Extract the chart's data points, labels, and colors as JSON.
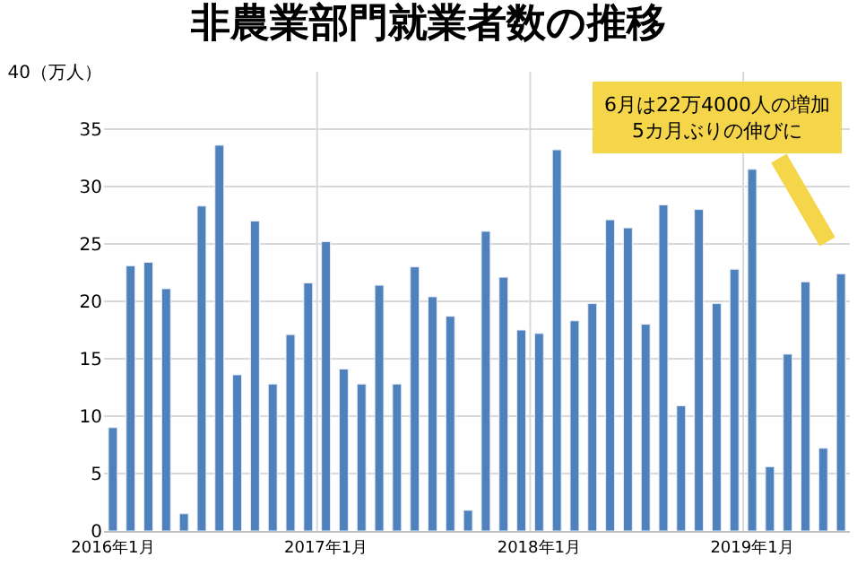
{
  "chart_data": {
    "type": "bar",
    "title": "非農業部門就業者数の推移",
    "categories": [
      "2016年1月",
      null,
      null,
      null,
      null,
      null,
      null,
      null,
      null,
      null,
      null,
      null,
      "2017年1月",
      null,
      null,
      null,
      null,
      null,
      null,
      null,
      null,
      null,
      null,
      null,
      "2018年1月",
      null,
      null,
      null,
      null,
      null,
      null,
      null,
      null,
      null,
      null,
      null,
      "2019年1月",
      null,
      null,
      null,
      null,
      null
    ],
    "values": [
      9.0,
      23.1,
      23.4,
      21.1,
      1.5,
      28.3,
      33.6,
      13.6,
      27.0,
      12.8,
      17.1,
      21.6,
      25.2,
      14.1,
      12.8,
      21.4,
      12.8,
      23.0,
      20.4,
      18.7,
      1.8,
      26.1,
      22.1,
      17.5,
      17.2,
      33.2,
      18.3,
      19.8,
      27.1,
      26.4,
      18.0,
      28.4,
      10.9,
      28.0,
      19.8,
      22.8,
      31.5,
      5.6,
      15.4,
      21.7,
      7.2,
      22.4
    ],
    "color": "#4f81bd",
    "ylim": [
      0,
      40
    ],
    "yticks": [
      0,
      5,
      10,
      15,
      20,
      25,
      30,
      35,
      {
        "value": 40,
        "label": "40（万人）"
      }
    ],
    "grid": true,
    "annotations": [
      "6月は22万4000人の増加\n5カ月ぶりの伸びに"
    ]
  }
}
